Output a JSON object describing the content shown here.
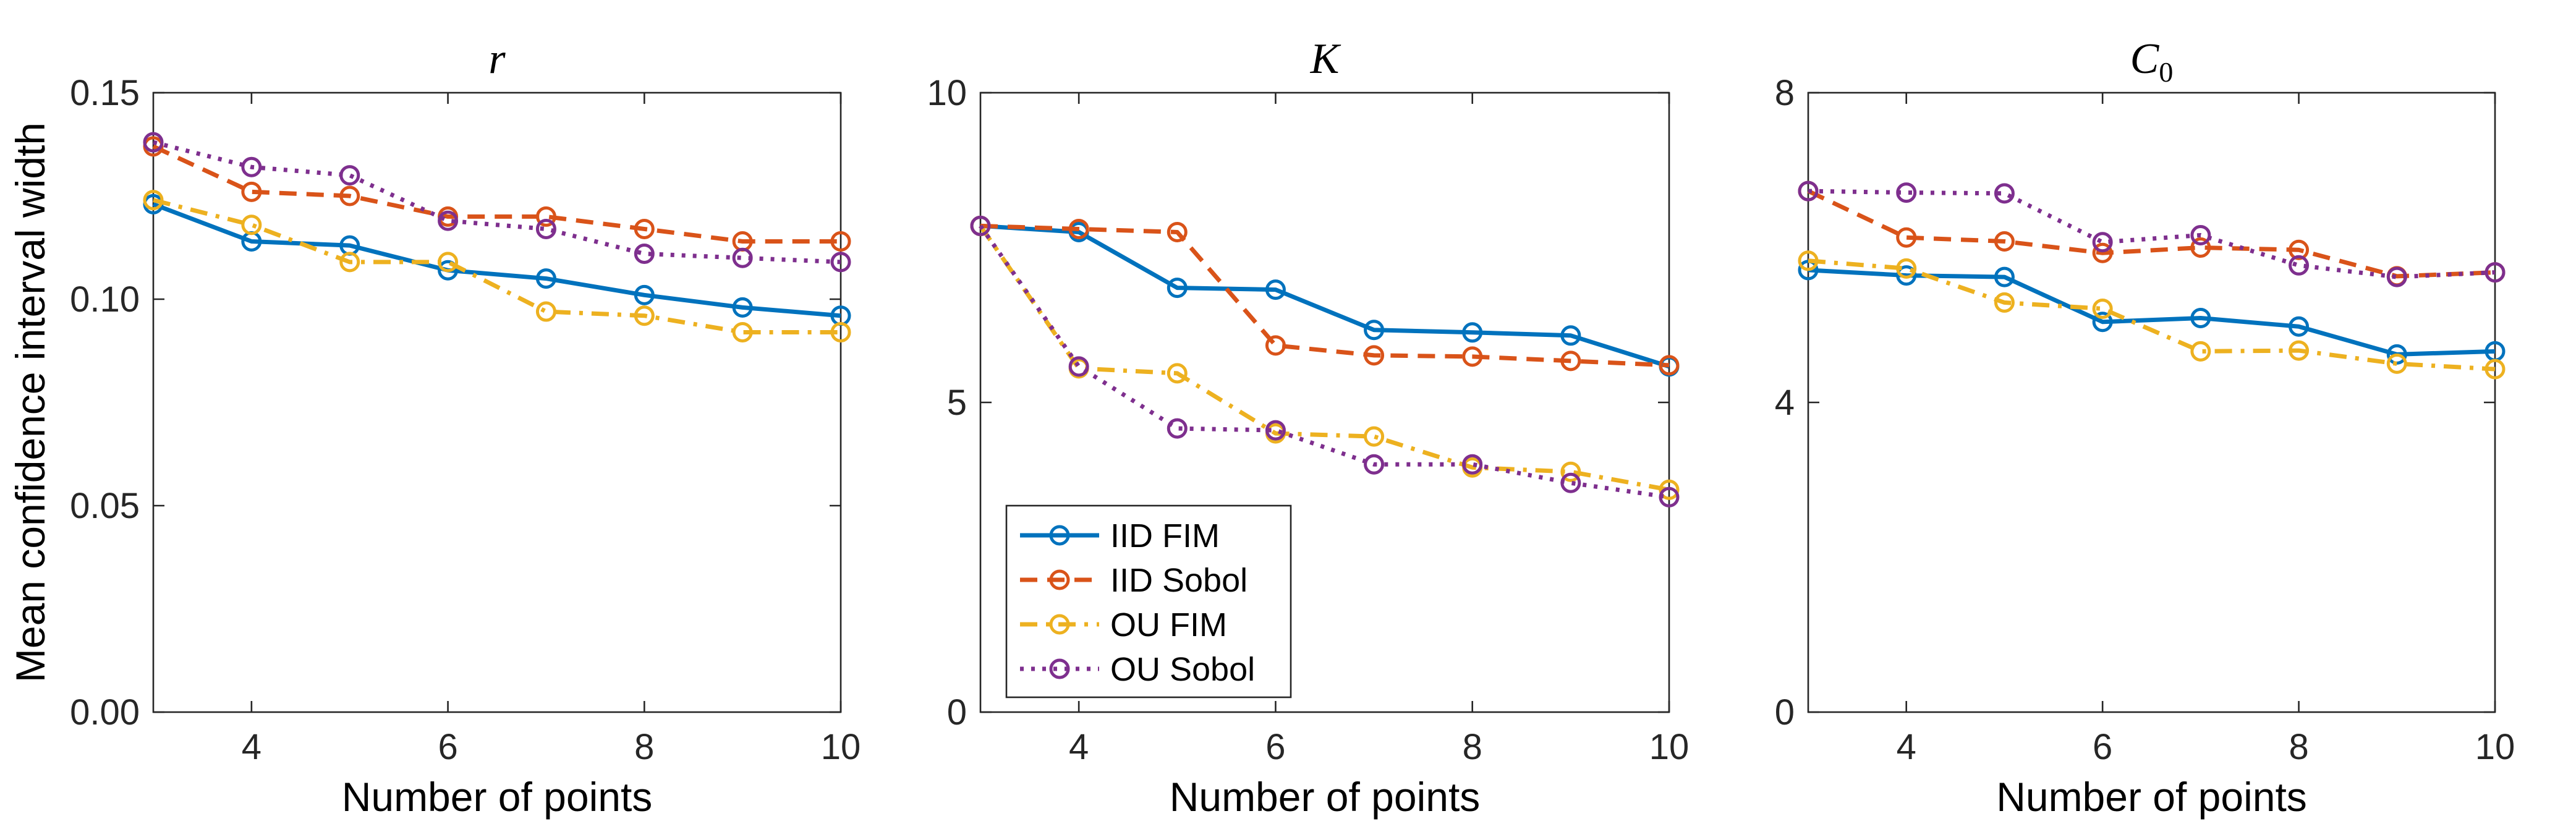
{
  "chart_data": [
    {
      "type": "line",
      "title": "r",
      "xlabel": "Number of points",
      "ylabel": "Mean confidence interval width",
      "xlim": [
        3,
        10
      ],
      "ylim": [
        0,
        0.15
      ],
      "xticks": [
        4,
        6,
        8,
        10
      ],
      "yticks": [
        0.0,
        0.05,
        0.1,
        0.15
      ],
      "yticklabels": [
        "0.00",
        "0.05",
        "0.10",
        "0.15"
      ],
      "x": [
        3,
        4,
        5,
        6,
        7,
        8,
        9,
        10
      ],
      "series": [
        {
          "name": "IID FIM",
          "values": [
            0.123,
            0.114,
            0.113,
            0.107,
            0.105,
            0.101,
            0.098,
            0.096
          ]
        },
        {
          "name": "IID Sobol",
          "values": [
            0.137,
            0.126,
            0.125,
            0.12,
            0.12,
            0.117,
            0.114,
            0.114
          ]
        },
        {
          "name": "OU FIM",
          "values": [
            0.124,
            0.118,
            0.109,
            0.109,
            0.097,
            0.096,
            0.092,
            0.092
          ]
        },
        {
          "name": "OU Sobol",
          "values": [
            0.138,
            0.132,
            0.13,
            0.119,
            0.117,
            0.111,
            0.11,
            0.109
          ]
        }
      ]
    },
    {
      "type": "line",
      "title": "K",
      "xlabel": "Number of points",
      "ylabel": "",
      "xlim": [
        3,
        10
      ],
      "ylim": [
        0,
        10
      ],
      "xticks": [
        4,
        6,
        8,
        10
      ],
      "yticks": [
        0,
        5,
        10
      ],
      "yticklabels": [
        "0",
        "5",
        "10"
      ],
      "x": [
        3,
        4,
        5,
        6,
        7,
        8,
        9,
        10
      ],
      "series": [
        {
          "name": "IID FIM",
          "values": [
            7.85,
            7.75,
            6.85,
            6.82,
            6.17,
            6.13,
            6.08,
            5.58
          ]
        },
        {
          "name": "IID Sobol",
          "values": [
            7.85,
            7.8,
            7.75,
            5.92,
            5.76,
            5.74,
            5.67,
            5.6
          ]
        },
        {
          "name": "OU FIM",
          "values": [
            7.85,
            5.55,
            5.47,
            4.5,
            4.45,
            3.95,
            3.88,
            3.59
          ]
        },
        {
          "name": "OU Sobol",
          "values": [
            7.85,
            5.58,
            4.58,
            4.55,
            4.0,
            4.0,
            3.7,
            3.47
          ]
        }
      ],
      "legend": {
        "position": "bottom-left",
        "entries": [
          "IID FIM",
          "IID Sobol",
          "OU FIM",
          "OU Sobol"
        ]
      }
    },
    {
      "type": "line",
      "title": "C",
      "title_subscript": "0",
      "xlabel": "Number of points",
      "ylabel": "",
      "xlim": [
        3,
        10
      ],
      "ylim": [
        0,
        8
      ],
      "xticks": [
        4,
        6,
        8,
        10
      ],
      "yticks": [
        0,
        4,
        8
      ],
      "yticklabels": [
        "0",
        "4",
        "8"
      ],
      "x": [
        3,
        4,
        5,
        6,
        7,
        8,
        9,
        10
      ],
      "series": [
        {
          "name": "IID FIM",
          "values": [
            5.71,
            5.64,
            5.62,
            5.04,
            5.09,
            4.98,
            4.62,
            4.66
          ]
        },
        {
          "name": "IID Sobol",
          "values": [
            6.73,
            6.13,
            6.08,
            5.93,
            6.0,
            5.97,
            5.63,
            5.68
          ]
        },
        {
          "name": "OU FIM",
          "values": [
            5.83,
            5.73,
            5.29,
            5.21,
            4.66,
            4.67,
            4.5,
            4.43
          ]
        },
        {
          "name": "OU Sobol",
          "values": [
            6.73,
            6.71,
            6.7,
            6.07,
            6.16,
            5.77,
            5.62,
            5.68
          ]
        }
      ]
    }
  ],
  "series_style": {
    "IID FIM": {
      "color": "#0072BD",
      "dash": "solid"
    },
    "IID Sobol": {
      "color": "#D95319",
      "dash": "dashed"
    },
    "OU FIM": {
      "color": "#EDB120",
      "dash": "dashdot"
    },
    "OU Sobol": {
      "color": "#7E2F8E",
      "dash": "dotted"
    }
  }
}
